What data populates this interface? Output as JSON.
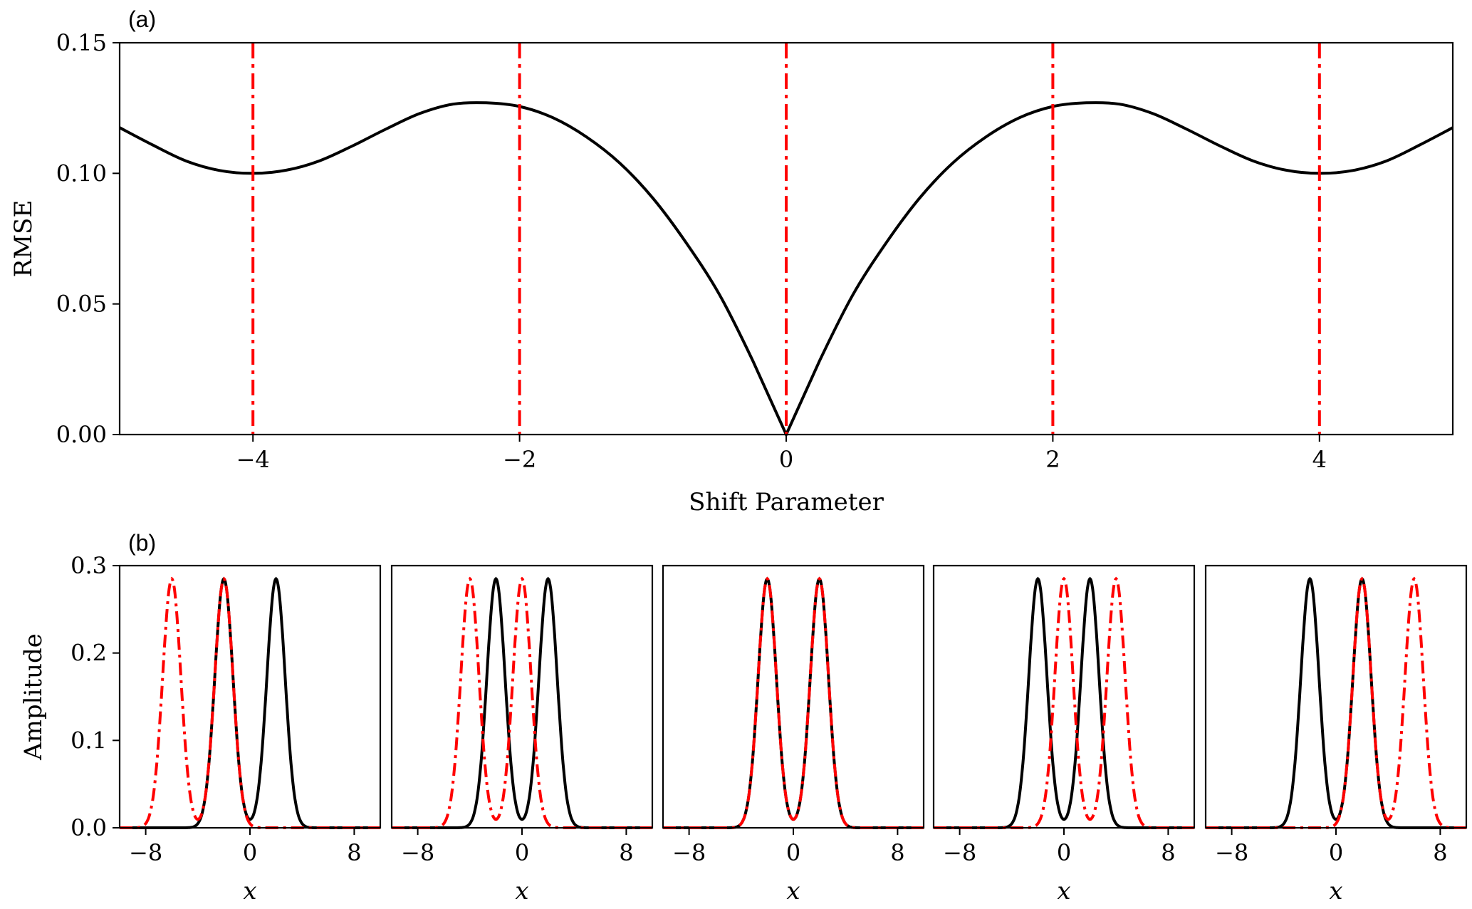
{
  "colors": {
    "reference": "#000000",
    "shifted": "#ff0000"
  },
  "chart_data": [
    {
      "id": "a",
      "type": "line",
      "panel_label": "(a)",
      "xlabel": "Shift Parameter",
      "ylabel": "RMSE",
      "xlim": [
        -5,
        5
      ],
      "ylim": [
        0,
        0.15
      ],
      "xticks": [
        -4,
        -2,
        0,
        2,
        4
      ],
      "xtick_labels": [
        "−4",
        "−2",
        "0",
        "2",
        "4"
      ],
      "yticks": [
        0.0,
        0.05,
        0.1,
        0.15
      ],
      "ytick_labels": [
        "0.00",
        "0.05",
        "0.10",
        "0.15"
      ],
      "grid": false,
      "series": [
        {
          "style": "solid",
          "color": "#000000",
          "x": [
            -5.0,
            -4.75,
            -4.5,
            -4.25,
            -4.0,
            -3.75,
            -3.5,
            -3.25,
            -3.0,
            -2.75,
            -2.5,
            -2.25,
            -2.0,
            -1.75,
            -1.5,
            -1.25,
            -1.0,
            -0.75,
            -0.5,
            -0.25,
            0.0,
            0.25,
            0.5,
            0.75,
            1.0,
            1.25,
            1.5,
            1.75,
            2.0,
            2.25,
            2.5,
            2.75,
            3.0,
            3.25,
            3.5,
            3.75,
            4.0,
            4.25,
            4.5,
            4.75,
            5.0
          ],
          "y": [
            0.1175,
            0.1108,
            0.1047,
            0.1011,
            0.1,
            0.1012,
            0.1048,
            0.1106,
            0.117,
            0.1229,
            0.1265,
            0.127,
            0.1256,
            0.1213,
            0.114,
            0.104,
            0.0905,
            0.0734,
            0.0535,
            0.0282,
            0.0,
            0.0282,
            0.0535,
            0.0734,
            0.0905,
            0.104,
            0.114,
            0.1213,
            0.1256,
            0.127,
            0.1265,
            0.1229,
            0.117,
            0.1106,
            0.1048,
            0.1012,
            0.1,
            0.1011,
            0.1047,
            0.1108,
            0.1175
          ]
        }
      ],
      "vlines": {
        "x": [
          -4,
          -2,
          0,
          2,
          4
        ],
        "style": "dashdot",
        "color": "#ff0000"
      }
    },
    {
      "id": "b",
      "type": "line",
      "panel_label": "(b)",
      "xlabel": "x",
      "ylabel": "Amplitude",
      "xlim": [
        -10,
        10
      ],
      "ylim": [
        0,
        0.3
      ],
      "xticks": [
        -8,
        0,
        8
      ],
      "xtick_labels": [
        "−8",
        "0",
        "8"
      ],
      "yticks": [
        0.0,
        0.1,
        0.2,
        0.3
      ],
      "ytick_labels": [
        "0.0",
        "0.1",
        "0.2",
        "0.3"
      ],
      "grid": false,
      "reference_peaks": [
        -2,
        2
      ],
      "peak_amplitude": 0.285,
      "peak_sigma": 0.7,
      "subplots": [
        {
          "shift": -4,
          "shifted_peaks": [
            -6,
            -2
          ]
        },
        {
          "shift": -2,
          "shifted_peaks": [
            -4,
            0
          ]
        },
        {
          "shift": 0,
          "shifted_peaks": [
            -2,
            2
          ]
        },
        {
          "shift": 2,
          "shifted_peaks": [
            0,
            4
          ]
        },
        {
          "shift": 4,
          "shifted_peaks": [
            2,
            6
          ]
        }
      ]
    }
  ]
}
